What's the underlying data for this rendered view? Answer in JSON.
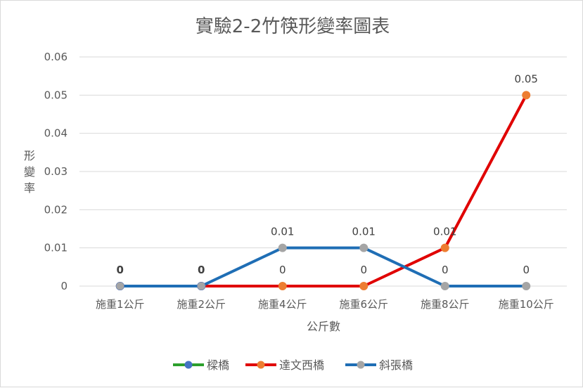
{
  "chart_data": {
    "type": "line",
    "title": "實驗2-2竹筷形變率圖表",
    "xlabel": "公斤數",
    "ylabel": "形變率",
    "categories": [
      "施重1公斤",
      "施重2公斤",
      "施重4公斤",
      "施重6公斤",
      "施重8公斤",
      "施重10公斤"
    ],
    "ylim": [
      0,
      0.06
    ],
    "yticks": [
      "0",
      "0.01",
      "0.02",
      "0.03",
      "0.04",
      "0.05",
      "0.06"
    ],
    "grid": true,
    "legend_position": "bottom",
    "series": [
      {
        "name": "樑橋",
        "color": "#4472c4",
        "line_color": "#2ca02c",
        "values": [
          0,
          0,
          null,
          null,
          null,
          null
        ],
        "labels": [
          "0",
          "0",
          "",
          "",
          "",
          ""
        ]
      },
      {
        "name": "達文西橋",
        "color": "#ed7d31",
        "line_color": "#e00000",
        "values": [
          0,
          0,
          0,
          0,
          0.01,
          0.05
        ],
        "labels": [
          "",
          "",
          "0",
          "0",
          "0.01",
          "0.05"
        ]
      },
      {
        "name": "斜張橋",
        "color": "#a5a5a5",
        "line_color": "#1f6eb5",
        "values": [
          0,
          0,
          0.01,
          0.01,
          0,
          0
        ],
        "labels": [
          "",
          "",
          "0.01",
          "0.01",
          "0",
          "0"
        ]
      }
    ]
  }
}
